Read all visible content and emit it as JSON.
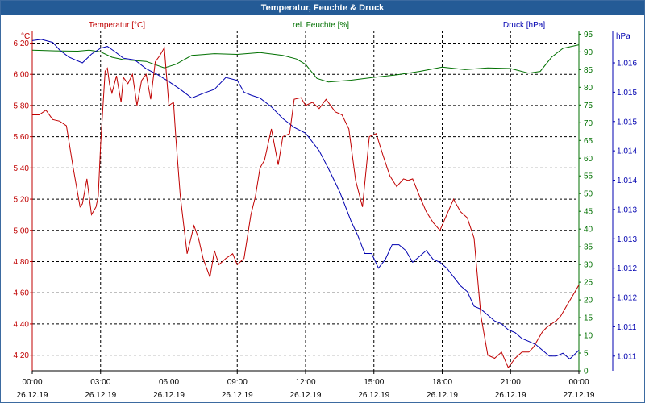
{
  "window": {
    "title": "Temperatur, Feuchte & Druck"
  },
  "chart_data": {
    "type": "line",
    "title": "Temperatur, Feuchte & Druck",
    "colors": {
      "temperature": "#c00000",
      "humidity": "#007000",
      "pressure": "#0000b0"
    },
    "grid": true,
    "axes": {
      "temperature": {
        "label": "Temperatur [°C]",
        "unit": "°C",
        "ylim": [
          4.1,
          6.28
        ],
        "ticks": [
          "6,20",
          "6,00",
          "5,80",
          "5,60",
          "5,40",
          "5,20",
          "5,00",
          "4,80",
          "4,60",
          "4,40",
          "4,20"
        ],
        "tick_values": [
          6.2,
          6.0,
          5.8,
          5.6,
          5.4,
          5.2,
          5.0,
          4.8,
          4.6,
          4.4,
          4.2
        ]
      },
      "humidity": {
        "label": "rel. Feuchte [%]",
        "unit": "%",
        "ylim": [
          0,
          96
        ],
        "ticks": [
          "95",
          "90",
          "85",
          "80",
          "75",
          "70",
          "65",
          "60",
          "55",
          "50",
          "45",
          "40",
          "35",
          "30",
          "25",
          "20",
          "15",
          "10",
          "5",
          "0"
        ],
        "tick_values": [
          95,
          90,
          85,
          80,
          75,
          70,
          65,
          60,
          55,
          50,
          45,
          40,
          35,
          30,
          25,
          20,
          15,
          10,
          5,
          0
        ]
      },
      "pressure": {
        "label": "Druck [hPa]",
        "unit": "hPa",
        "ylim": [
          1010.75,
          1016.55
        ],
        "ticks": [
          "1.016",
          "1.015",
          "1.015",
          "1.014",
          "1.014",
          "1.013",
          "1.013",
          "1.012",
          "1.012",
          "1.011",
          "1.011"
        ],
        "tick_values": [
          1016.0,
          1015.5,
          1015.0,
          1014.5,
          1014.0,
          1013.5,
          1013.0,
          1012.5,
          1012.0,
          1011.5,
          1011.0
        ]
      }
    },
    "x_ticks": [
      {
        "time": "00:00",
        "date": "26.12.19",
        "hours": 0
      },
      {
        "time": "03:00",
        "date": "26.12.19",
        "hours": 3
      },
      {
        "time": "06:00",
        "date": "26.12.19",
        "hours": 6
      },
      {
        "time": "09:00",
        "date": "26.12.19",
        "hours": 9
      },
      {
        "time": "12:00",
        "date": "26.12.19",
        "hours": 12
      },
      {
        "time": "15:00",
        "date": "26.12.19",
        "hours": 15
      },
      {
        "time": "18:00",
        "date": "26.12.19",
        "hours": 18
      },
      {
        "time": "21:00",
        "date": "26.12.19",
        "hours": 21
      },
      {
        "time": "00:00",
        "date": "27.12.19",
        "hours": 24
      }
    ],
    "xlim": [
      0,
      24
    ],
    "series": [
      {
        "name": "Temperatur [°C]",
        "axis": "temperature",
        "x": [
          0,
          0.3,
          0.6,
          0.9,
          1.2,
          1.5,
          1.8,
          2.1,
          2.2,
          2.4,
          2.6,
          2.8,
          2.9,
          3.0,
          3.2,
          3.3,
          3.4,
          3.5,
          3.7,
          3.9,
          4.0,
          4.2,
          4.4,
          4.6,
          4.8,
          5.0,
          5.2,
          5.4,
          5.6,
          5.8,
          6.0,
          6.2,
          6.3,
          6.5,
          6.8,
          7.1,
          7.3,
          7.5,
          7.8,
          8.0,
          8.2,
          8.5,
          8.8,
          9.0,
          9.3,
          9.6,
          9.8,
          10.0,
          10.2,
          10.5,
          10.8,
          11.0,
          11.3,
          11.5,
          11.8,
          12.0,
          12.3,
          12.6,
          12.9,
          13.3,
          13.6,
          13.9,
          14.2,
          14.5,
          14.8,
          15.1,
          15.4,
          15.7,
          16.0,
          16.3,
          16.5,
          16.7,
          17.0,
          17.3,
          17.6,
          17.9,
          18.2,
          18.5,
          18.8,
          19.1,
          19.4,
          19.7,
          20.0,
          20.3,
          20.6,
          20.9,
          21.2,
          21.5,
          21.8,
          22.0,
          22.2,
          22.4,
          22.6,
          22.8,
          23.0,
          23.2,
          23.4,
          23.6,
          23.8,
          24.0
        ],
        "values": [
          5.74,
          5.74,
          5.77,
          5.71,
          5.7,
          5.67,
          5.4,
          5.15,
          5.17,
          5.33,
          5.1,
          5.15,
          5.22,
          5.55,
          6.02,
          6.04,
          5.93,
          5.88,
          5.99,
          5.82,
          5.98,
          5.94,
          6.0,
          5.8,
          5.96,
          6.0,
          5.84,
          6.08,
          6.12,
          6.17,
          5.8,
          5.82,
          5.6,
          5.22,
          4.85,
          5.03,
          4.95,
          4.82,
          4.7,
          4.87,
          4.78,
          4.82,
          4.85,
          4.78,
          4.82,
          5.1,
          5.22,
          5.4,
          5.45,
          5.65,
          5.42,
          5.6,
          5.62,
          5.84,
          5.85,
          5.8,
          5.82,
          5.78,
          5.84,
          5.76,
          5.74,
          5.65,
          5.32,
          5.15,
          5.6,
          5.62,
          5.48,
          5.35,
          5.28,
          5.33,
          5.32,
          5.33,
          5.22,
          5.12,
          5.05,
          5.0,
          5.1,
          5.2,
          5.12,
          5.08,
          4.95,
          4.45,
          4.2,
          4.18,
          4.22,
          4.12,
          4.18,
          4.22,
          4.22,
          4.25,
          4.3,
          4.35,
          4.38,
          4.4,
          4.42,
          4.45,
          4.5,
          4.55,
          4.6,
          4.65
        ]
      },
      {
        "name": "rel. Feuchte [%]",
        "axis": "humidity",
        "x": [
          0,
          1,
          2,
          2.5,
          3,
          3.5,
          4,
          5,
          5.8,
          6.3,
          7,
          8,
          9,
          10,
          11,
          11.6,
          12,
          12.5,
          13,
          14,
          15,
          16,
          17,
          18,
          19,
          20,
          21,
          21.8,
          22.3,
          22.8,
          23.3,
          24
        ],
        "values": [
          90.5,
          90.3,
          90.2,
          90.5,
          90.0,
          88.5,
          87.8,
          87.3,
          85.5,
          86.5,
          89.0,
          89.5,
          89.3,
          89.8,
          89.0,
          88.0,
          86.5,
          82.5,
          81.5,
          82.0,
          82.8,
          83.5,
          84.5,
          85.7,
          85.0,
          85.5,
          85.3,
          84.0,
          84.5,
          88.5,
          91.0,
          92.0
        ]
      },
      {
        "name": "Druck [hPa]",
        "axis": "pressure",
        "x": [
          0,
          0.4,
          0.9,
          1.2,
          1.6,
          1.9,
          2.2,
          2.6,
          3.0,
          3.3,
          3.6,
          4.0,
          4.5,
          5.0,
          5.5,
          6.0,
          6.5,
          7.0,
          7.5,
          8.0,
          8.5,
          9.0,
          9.3,
          9.6,
          10.0,
          10.5,
          11.0,
          11.5,
          12.0,
          12.3,
          12.6,
          13.0,
          13.5,
          14.0,
          14.3,
          14.6,
          14.9,
          15.2,
          15.5,
          15.8,
          16.1,
          16.4,
          16.7,
          17.0,
          17.3,
          17.6,
          17.9,
          18.2,
          18.5,
          18.8,
          19.1,
          19.4,
          19.7,
          20.0,
          20.3,
          20.6,
          20.9,
          21.2,
          21.5,
          21.8,
          22.1,
          22.4,
          22.7,
          23.0,
          23.3,
          23.6,
          24.0
        ],
        "values": [
          1016.38,
          1016.4,
          1016.35,
          1016.22,
          1016.1,
          1016.05,
          1016.0,
          1016.15,
          1016.25,
          1016.28,
          1016.2,
          1016.08,
          1016.05,
          1015.9,
          1015.8,
          1015.68,
          1015.55,
          1015.4,
          1015.48,
          1015.55,
          1015.75,
          1015.7,
          1015.5,
          1015.45,
          1015.4,
          1015.25,
          1015.05,
          1014.9,
          1014.8,
          1014.65,
          1014.5,
          1014.2,
          1013.8,
          1013.3,
          1013.05,
          1012.75,
          1012.75,
          1012.5,
          1012.65,
          1012.9,
          1012.9,
          1012.8,
          1012.6,
          1012.7,
          1012.8,
          1012.65,
          1012.6,
          1012.5,
          1012.35,
          1012.2,
          1012.1,
          1011.85,
          1011.8,
          1011.7,
          1011.6,
          1011.55,
          1011.45,
          1011.4,
          1011.3,
          1011.25,
          1011.2,
          1011.1,
          1011.0,
          1011.0,
          1011.05,
          1010.95,
          1011.1
        ]
      }
    ]
  }
}
